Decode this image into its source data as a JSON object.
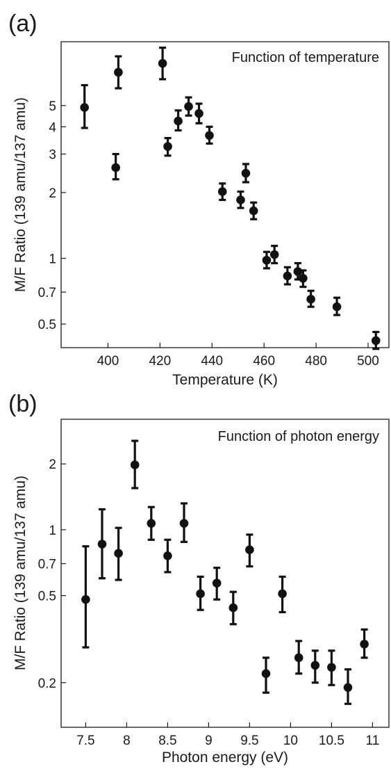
{
  "chart_data": [
    {
      "panel_label": "(a)",
      "type": "scatter",
      "annotation": "Function of temperature",
      "xlabel": "Temperature (K)",
      "ylabel": "M/F Ratio (139 amu/137 amu)",
      "yscale": "log",
      "xlim": [
        382,
        508
      ],
      "ylim": [
        0.39,
        9.8
      ],
      "xticks": [
        400,
        420,
        440,
        460,
        480,
        500
      ],
      "yticks": [
        0.5,
        0.7,
        1,
        2,
        3,
        4,
        5
      ],
      "ytick_labels": [
        "0.5",
        "0.7",
        "1",
        "2",
        "3",
        "4",
        "5"
      ],
      "grid": false,
      "points": [
        {
          "x": 391,
          "y": 4.9,
          "ylo": 3.95,
          "yhi": 6.2
        },
        {
          "x": 403,
          "y": 2.6,
          "ylo": 2.3,
          "yhi": 3.0
        },
        {
          "x": 404,
          "y": 7.1,
          "ylo": 6.0,
          "yhi": 8.4
        },
        {
          "x": 421,
          "y": 7.8,
          "ylo": 6.6,
          "yhi": 9.2
        },
        {
          "x": 423,
          "y": 3.25,
          "ylo": 2.95,
          "yhi": 3.55
        },
        {
          "x": 427,
          "y": 4.25,
          "ylo": 3.85,
          "yhi": 4.75
        },
        {
          "x": 431,
          "y": 4.95,
          "ylo": 4.5,
          "yhi": 5.45
        },
        {
          "x": 435,
          "y": 4.6,
          "ylo": 4.15,
          "yhi": 5.1
        },
        {
          "x": 439,
          "y": 3.65,
          "ylo": 3.35,
          "yhi": 4.0
        },
        {
          "x": 444,
          "y": 2.02,
          "ylo": 1.85,
          "yhi": 2.2
        },
        {
          "x": 451,
          "y": 1.85,
          "ylo": 1.7,
          "yhi": 2.02
        },
        {
          "x": 453,
          "y": 2.45,
          "ylo": 2.23,
          "yhi": 2.7
        },
        {
          "x": 456,
          "y": 1.65,
          "ylo": 1.51,
          "yhi": 1.8
        },
        {
          "x": 461,
          "y": 0.98,
          "ylo": 0.9,
          "yhi": 1.07
        },
        {
          "x": 464,
          "y": 1.04,
          "ylo": 0.95,
          "yhi": 1.14
        },
        {
          "x": 469,
          "y": 0.83,
          "ylo": 0.76,
          "yhi": 0.91
        },
        {
          "x": 473,
          "y": 0.87,
          "ylo": 0.8,
          "yhi": 0.95
        },
        {
          "x": 475,
          "y": 0.81,
          "ylo": 0.74,
          "yhi": 0.88
        },
        {
          "x": 478,
          "y": 0.65,
          "ylo": 0.6,
          "yhi": 0.71
        },
        {
          "x": 488,
          "y": 0.6,
          "ylo": 0.55,
          "yhi": 0.66
        },
        {
          "x": 503,
          "y": 0.42,
          "ylo": 0.385,
          "yhi": 0.46
        }
      ]
    },
    {
      "panel_label": "(b)",
      "type": "scatter",
      "annotation": "Function of photon energy",
      "xlabel": "Photon energy (eV)",
      "ylabel": "M/F Ratio (139 amu/137 amu)",
      "yscale": "log",
      "xlim": [
        7.2,
        11.2
      ],
      "ylim": [
        0.125,
        3.2
      ],
      "xticks": [
        7.5,
        8,
        8.5,
        9,
        9.5,
        10,
        10.5,
        11
      ],
      "xtick_labels": [
        "7.5",
        "8",
        "8.5",
        "9",
        "9.5",
        "10",
        "10.5",
        "11"
      ],
      "yticks": [
        0.2,
        0.5,
        0.7,
        1,
        2
      ],
      "ytick_labels": [
        "0.2",
        "0.5",
        "0.7",
        "1",
        "2"
      ],
      "grid": false,
      "points": [
        {
          "x": 7.5,
          "y": 0.48,
          "ylo": 0.29,
          "yhi": 0.84
        },
        {
          "x": 7.7,
          "y": 0.86,
          "ylo": 0.6,
          "yhi": 1.24
        },
        {
          "x": 7.9,
          "y": 0.78,
          "ylo": 0.59,
          "yhi": 1.02
        },
        {
          "x": 8.1,
          "y": 1.98,
          "ylo": 1.55,
          "yhi": 2.55
        },
        {
          "x": 8.3,
          "y": 1.07,
          "ylo": 0.9,
          "yhi": 1.27
        },
        {
          "x": 8.5,
          "y": 0.76,
          "ylo": 0.64,
          "yhi": 0.9
        },
        {
          "x": 8.7,
          "y": 1.07,
          "ylo": 0.88,
          "yhi": 1.32
        },
        {
          "x": 8.9,
          "y": 0.51,
          "ylo": 0.43,
          "yhi": 0.61
        },
        {
          "x": 9.1,
          "y": 0.57,
          "ylo": 0.48,
          "yhi": 0.67
        },
        {
          "x": 9.3,
          "y": 0.44,
          "ylo": 0.37,
          "yhi": 0.52
        },
        {
          "x": 9.5,
          "y": 0.81,
          "ylo": 0.68,
          "yhi": 0.95
        },
        {
          "x": 9.7,
          "y": 0.22,
          "ylo": 0.18,
          "yhi": 0.26
        },
        {
          "x": 9.9,
          "y": 0.51,
          "ylo": 0.42,
          "yhi": 0.61
        },
        {
          "x": 10.1,
          "y": 0.26,
          "ylo": 0.22,
          "yhi": 0.31
        },
        {
          "x": 10.3,
          "y": 0.24,
          "ylo": 0.2,
          "yhi": 0.28
        },
        {
          "x": 10.5,
          "y": 0.235,
          "ylo": 0.195,
          "yhi": 0.28
        },
        {
          "x": 10.7,
          "y": 0.19,
          "ylo": 0.16,
          "yhi": 0.23
        },
        {
          "x": 10.9,
          "y": 0.3,
          "ylo": 0.26,
          "yhi": 0.35
        }
      ]
    }
  ]
}
